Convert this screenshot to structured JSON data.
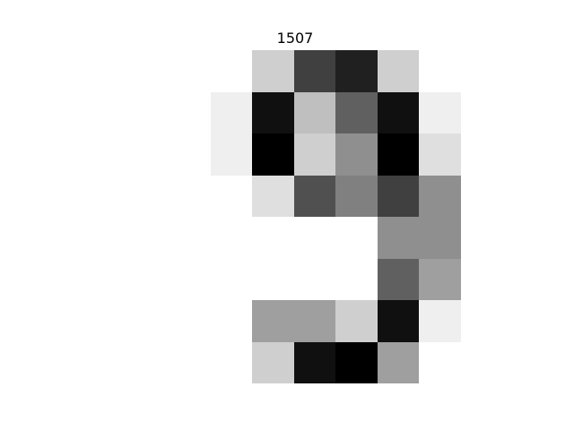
{
  "image": {
    "title": "1507",
    "rows": 8,
    "cols": 8,
    "values": [
      [
        0,
        0,
        3,
        12,
        14,
        3,
        0,
        0
      ],
      [
        0,
        1,
        15,
        4,
        10,
        15,
        1,
        0
      ],
      [
        0,
        1,
        16,
        3,
        7,
        16,
        2,
        0
      ],
      [
        0,
        0,
        2,
        11,
        8,
        12,
        7,
        0
      ],
      [
        0,
        0,
        0,
        0,
        0,
        7,
        7,
        0
      ],
      [
        0,
        0,
        0,
        0,
        0,
        10,
        6,
        0
      ],
      [
        0,
        0,
        6,
        6,
        3,
        15,
        1,
        0
      ],
      [
        0,
        0,
        3,
        15,
        16,
        6,
        0,
        0
      ]
    ],
    "max_value": 16,
    "colormap": "gray_r"
  }
}
